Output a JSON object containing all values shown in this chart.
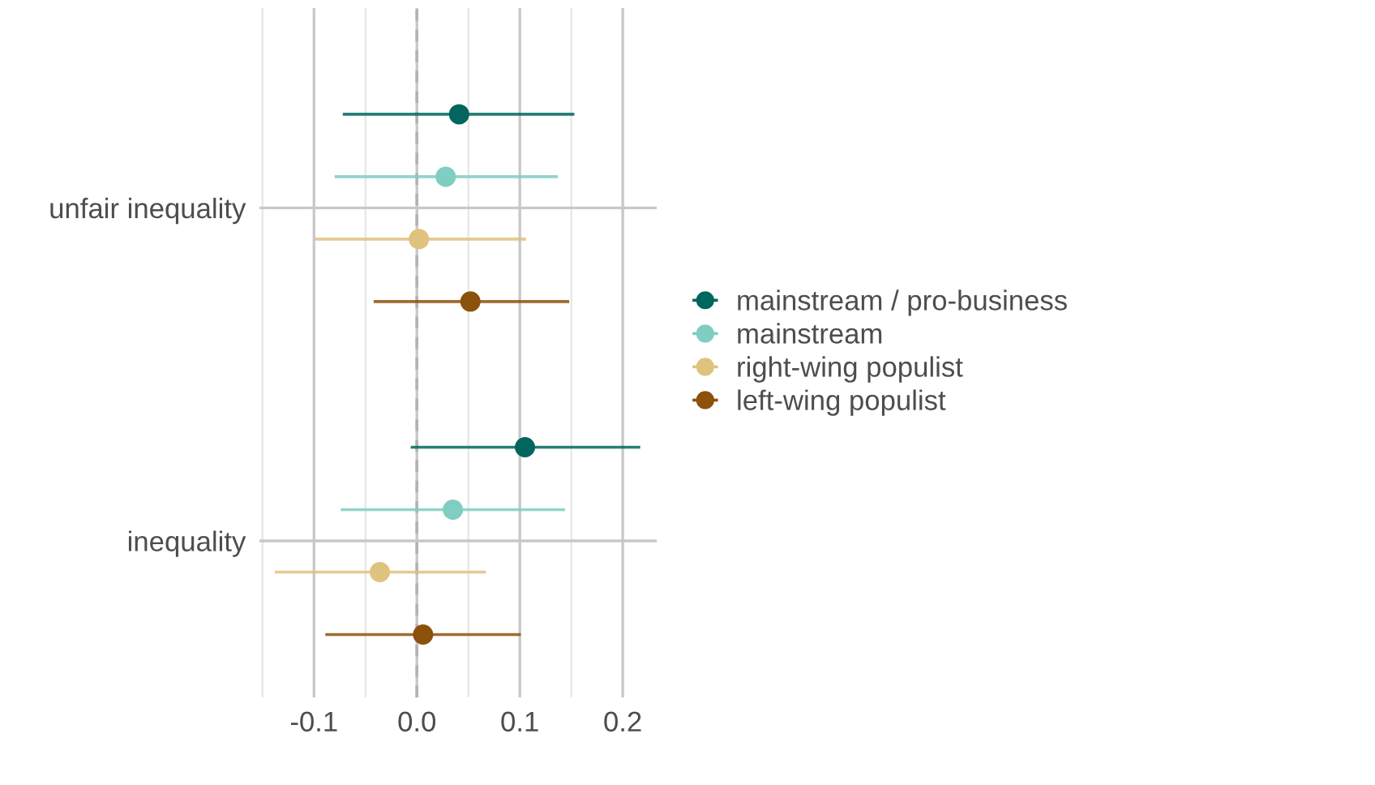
{
  "chart_data": {
    "type": "scatter",
    "orientation": "horizontal",
    "categories": [
      "unfair inequality",
      "inequality"
    ],
    "series": [
      {
        "name": "left-wing populist",
        "color": "#8c510a",
        "values": [
          0.052,
          0.006
        ],
        "errors": [
          [
            -0.042,
            0.148
          ],
          [
            -0.089,
            0.101
          ]
        ]
      },
      {
        "name": "right-wing populist",
        "color": "#dfc27d",
        "values": [
          0.002,
          -0.036
        ],
        "errors": [
          [
            -0.099,
            0.106
          ],
          [
            -0.138,
            0.067
          ]
        ]
      },
      {
        "name": "mainstream",
        "color": "#80cdc1",
        "values": [
          0.028,
          0.035
        ],
        "errors": [
          [
            -0.08,
            0.137
          ],
          [
            -0.074,
            0.144
          ]
        ]
      },
      {
        "name": "mainstream / pro-business",
        "color": "#01665e",
        "values": [
          0.041,
          0.105
        ],
        "errors": [
          [
            -0.072,
            0.153
          ],
          [
            -0.006,
            0.217
          ]
        ]
      }
    ],
    "xlim": [
      -0.153,
      0.233
    ],
    "xticks": [
      {
        "value": -0.1,
        "label": "-0.1"
      },
      {
        "value": 0.0,
        "label": "0.0"
      },
      {
        "value": 0.1,
        "label": "0.1"
      },
      {
        "value": 0.2,
        "label": "0.2"
      }
    ],
    "ref_lines": [
      {
        "axis": "x",
        "value": 0,
        "color": "#b3b3b3",
        "line_style": "dashed"
      }
    ],
    "grid": true,
    "legend": "right",
    "marker": "circle"
  }
}
